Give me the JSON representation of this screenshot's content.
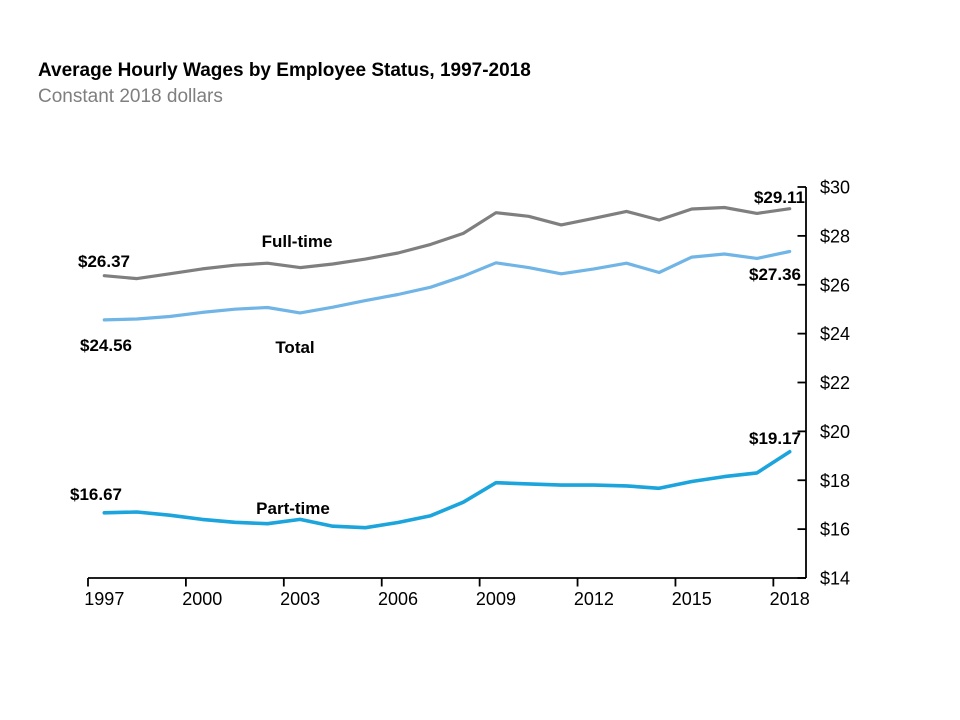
{
  "header": {
    "title": "Average Hourly Wages by Employee Status, 1997-2018",
    "subtitle": "Constant 2018 dollars"
  },
  "chart_data": {
    "type": "line",
    "title": "Average Hourly Wages by Employee Status, 1997-2018",
    "subtitle": "Constant 2018 dollars",
    "x": [
      1997,
      1998,
      1999,
      2000,
      2001,
      2002,
      2003,
      2004,
      2005,
      2006,
      2007,
      2008,
      2009,
      2010,
      2011,
      2012,
      2013,
      2014,
      2015,
      2016,
      2017,
      2018
    ],
    "series": [
      {
        "name": "Full-time",
        "color": "#7F7F7F",
        "start_label": "$26.37",
        "end_label": "$29.11",
        "values": [
          26.37,
          26.25,
          26.45,
          26.65,
          26.8,
          26.88,
          26.7,
          26.85,
          27.05,
          27.3,
          27.65,
          28.1,
          28.95,
          28.8,
          28.45,
          28.72,
          29.0,
          28.65,
          29.1,
          29.16,
          28.92,
          29.11
        ]
      },
      {
        "name": "Total",
        "color": "#70B5E6",
        "start_label": "$24.56",
        "end_label": "$27.36",
        "values": [
          24.56,
          24.6,
          24.7,
          24.87,
          25.0,
          25.07,
          24.85,
          25.08,
          25.35,
          25.6,
          25.9,
          26.35,
          26.9,
          26.7,
          26.45,
          26.65,
          26.88,
          26.5,
          27.13,
          27.26,
          27.08,
          27.36
        ]
      },
      {
        "name": "Part-time",
        "color": "#1CA4DC",
        "start_label": "$16.67",
        "end_label": "$19.17",
        "values": [
          16.67,
          16.7,
          16.57,
          16.4,
          16.28,
          16.22,
          16.4,
          16.12,
          16.06,
          16.27,
          16.55,
          17.1,
          17.9,
          17.85,
          17.8,
          17.8,
          17.77,
          17.67,
          17.95,
          18.15,
          18.3,
          19.17
        ]
      }
    ],
    "y_axis": {
      "side": "right",
      "min": 14,
      "max": 30,
      "step": 2,
      "tick_labels": [
        "$30",
        "$28",
        "$26",
        "$24",
        "$22",
        "$20",
        "$18",
        "$16",
        "$14"
      ]
    },
    "x_axis": {
      "tick_labels": [
        "1997",
        "2000",
        "2003",
        "2006",
        "2009",
        "2012",
        "2015",
        "2018"
      ]
    },
    "grid": false,
    "legend": "inline-labels",
    "ylim": [
      14,
      30
    ]
  }
}
